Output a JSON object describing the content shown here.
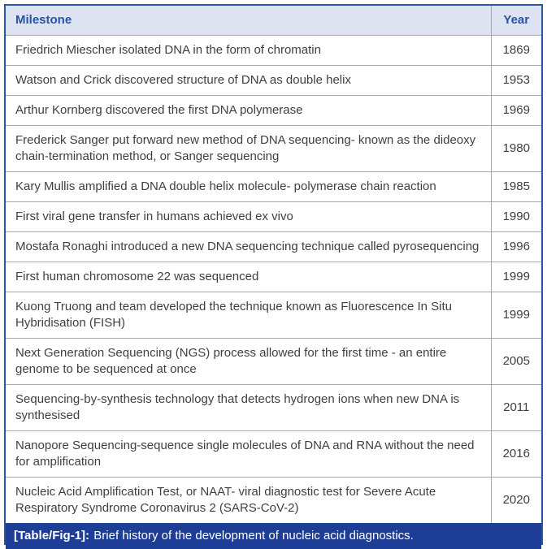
{
  "table": {
    "columns": [
      {
        "label": "Milestone"
      },
      {
        "label": "Year"
      }
    ],
    "rows": [
      {
        "milestone": "Friedrich Miescher isolated DNA in the form of chromatin",
        "year": "1869"
      },
      {
        "milestone": "Watson and Crick discovered structure of DNA as double helix",
        "year": "1953"
      },
      {
        "milestone": "Arthur Kornberg discovered the first DNA polymerase",
        "year": "1969"
      },
      {
        "milestone": "Frederick Sanger put forward new method of DNA sequencing- known as the dideoxy chain-termination method, or Sanger sequencing",
        "year": "1980"
      },
      {
        "milestone": "Kary Mullis amplified a DNA double helix molecule- polymerase chain reaction",
        "year": "1985"
      },
      {
        "milestone": "First viral gene transfer in humans achieved ex vivo",
        "year": "1990"
      },
      {
        "milestone": "Mostafa Ronaghi introduced a new DNA sequencing technique called pyrosequencing",
        "year": "1996"
      },
      {
        "milestone": "First human chromosome 22 was sequenced",
        "year": "1999"
      },
      {
        "milestone": "Kuong Truong and team developed the technique known as Fluorescence In Situ Hybridisation (FISH)",
        "year": "1999"
      },
      {
        "milestone": "Next Generation Sequencing (NGS) process allowed for the first time - an entire genome to be sequenced at once",
        "year": "2005"
      },
      {
        "milestone": "Sequencing-by-synthesis technology that detects hydrogen ions when new DNA is synthesised",
        "year": "2011"
      },
      {
        "milestone": "Nanopore Sequencing-sequence single molecules of DNA and RNA without the need for amplification",
        "year": "2016"
      },
      {
        "milestone": "Nucleic Acid Amplification Test, or NAAT- viral diagnostic test for Severe Acute Respiratory Syndrome Coronavirus 2 (SARS-CoV-2)",
        "year": "2020"
      }
    ]
  },
  "caption": {
    "label": "[Table/Fig-1]:",
    "text": "Brief history of the development of nucleic acid diagnostics."
  },
  "colors": {
    "header_bg": "#dde3f0",
    "header_text": "#2653a3",
    "outer_border": "#2b55a5",
    "inner_border": "#a6a6a6",
    "body_text": "#3f3f3f",
    "caption_bg": "#1e3d96",
    "caption_text": "#ffffff"
  }
}
